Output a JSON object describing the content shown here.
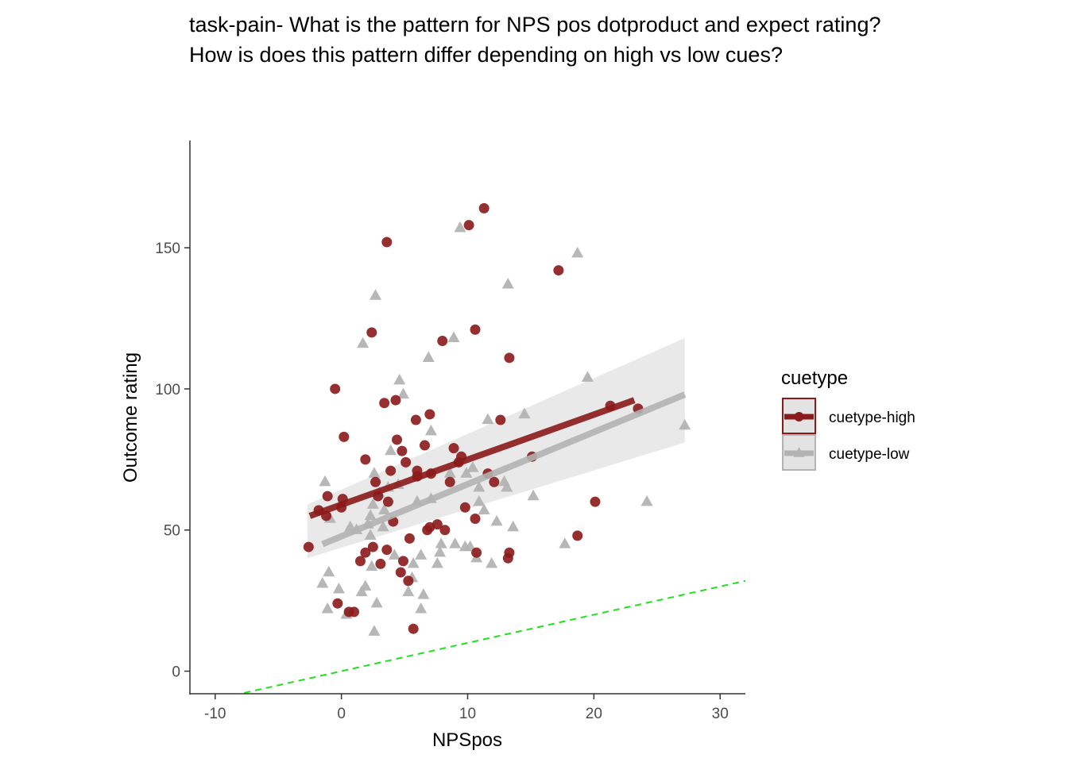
{
  "chart_data": {
    "type": "scatter",
    "title_lines": [
      "task-pain- What is the pattern for NPS pos dotproduct and expect rating?",
      "How is does this pattern differ depending on high vs low cues?"
    ],
    "xlabel": "NPSpos",
    "ylabel": "Outcome rating",
    "xlim": [
      -12,
      32
    ],
    "ylim": [
      -8,
      188
    ],
    "x_ticks": [
      -10,
      0,
      10,
      20,
      30
    ],
    "y_ticks": [
      0,
      50,
      100,
      150
    ],
    "grid": false,
    "legend": {
      "title": "cuetype",
      "position": "right"
    },
    "reference_line": {
      "style": "dashed",
      "color": "#22e01d",
      "slope": 1,
      "intercept": 0
    },
    "series": [
      {
        "name": "cuetype-high",
        "marker": "circle",
        "color": "#8b1a1a",
        "fit": {
          "x0": -2.5,
          "y0": 55,
          "x1": 23.2,
          "y1": 96
        },
        "band": null,
        "points": [
          [
            -2.6,
            44
          ],
          [
            -1.8,
            57
          ],
          [
            -1.2,
            55
          ],
          [
            -1.1,
            62
          ],
          [
            -0.5,
            100
          ],
          [
            -0.3,
            24
          ],
          [
            0.0,
            58
          ],
          [
            0.1,
            61
          ],
          [
            0.2,
            83
          ],
          [
            0.6,
            21
          ],
          [
            1.0,
            21
          ],
          [
            1.5,
            39
          ],
          [
            1.9,
            42
          ],
          [
            1.9,
            75
          ],
          [
            2.4,
            120
          ],
          [
            2.5,
            44
          ],
          [
            2.7,
            67
          ],
          [
            2.9,
            62
          ],
          [
            3.1,
            38
          ],
          [
            3.4,
            95
          ],
          [
            3.6,
            152
          ],
          [
            3.6,
            43
          ],
          [
            3.7,
            60
          ],
          [
            3.9,
            71
          ],
          [
            4.1,
            53
          ],
          [
            4.3,
            96
          ],
          [
            4.4,
            82
          ],
          [
            4.7,
            35
          ],
          [
            4.8,
            78
          ],
          [
            4.9,
            39
          ],
          [
            5.1,
            74
          ],
          [
            5.3,
            32
          ],
          [
            5.4,
            47
          ],
          [
            5.7,
            15
          ],
          [
            5.9,
            89
          ],
          [
            6.0,
            69
          ],
          [
            6.0,
            71
          ],
          [
            6.6,
            80
          ],
          [
            6.8,
            50
          ],
          [
            7.0,
            51
          ],
          [
            7.0,
            91
          ],
          [
            7.1,
            70
          ],
          [
            7.6,
            52
          ],
          [
            8.0,
            117
          ],
          [
            8.2,
            50
          ],
          [
            8.6,
            67
          ],
          [
            8.9,
            79
          ],
          [
            9.3,
            74
          ],
          [
            9.5,
            76
          ],
          [
            9.8,
            58
          ],
          [
            10.1,
            158
          ],
          [
            10.6,
            54
          ],
          [
            10.6,
            121
          ],
          [
            10.7,
            42
          ],
          [
            11.3,
            164
          ],
          [
            11.6,
            70
          ],
          [
            12.1,
            67
          ],
          [
            12.6,
            89
          ],
          [
            13.2,
            40
          ],
          [
            13.3,
            42
          ],
          [
            13.3,
            111
          ],
          [
            15.1,
            76
          ],
          [
            17.2,
            142
          ],
          [
            18.7,
            48
          ],
          [
            20.1,
            60
          ],
          [
            21.3,
            94
          ],
          [
            23.5,
            93
          ]
        ]
      },
      {
        "name": "cuetype-low",
        "marker": "triangle",
        "color": "#b3b3b3",
        "fit": {
          "x0": -1.5,
          "y0": 45,
          "x1": 27.2,
          "y1": 98
        },
        "band": {
          "x0": -2.7,
          "lower0": 40,
          "upper0": 59,
          "x1": 27.2,
          "lower1": 81,
          "upper1": 118
        },
        "points": [
          [
            -1.5,
            31
          ],
          [
            -1.3,
            67
          ],
          [
            -1.1,
            22
          ],
          [
            -1.0,
            35
          ],
          [
            -0.9,
            54
          ],
          [
            -0.2,
            29
          ],
          [
            0.4,
            20
          ],
          [
            0.7,
            51
          ],
          [
            1.2,
            50
          ],
          [
            1.6,
            28
          ],
          [
            1.7,
            116
          ],
          [
            1.9,
            30
          ],
          [
            2.1,
            52
          ],
          [
            2.3,
            48
          ],
          [
            2.3,
            55
          ],
          [
            2.4,
            37
          ],
          [
            2.5,
            59
          ],
          [
            2.6,
            70
          ],
          [
            2.6,
            14
          ],
          [
            2.7,
            133
          ],
          [
            2.8,
            24
          ],
          [
            3.0,
            63
          ],
          [
            3.3,
            51
          ],
          [
            3.4,
            57
          ],
          [
            3.7,
            65
          ],
          [
            3.9,
            78
          ],
          [
            4.2,
            41
          ],
          [
            4.5,
            66
          ],
          [
            4.6,
            103
          ],
          [
            4.9,
            98
          ],
          [
            5.3,
            28
          ],
          [
            5.6,
            33
          ],
          [
            5.7,
            38
          ],
          [
            6.0,
            60
          ],
          [
            6.3,
            41
          ],
          [
            6.3,
            22
          ],
          [
            6.5,
            27
          ],
          [
            6.9,
            111
          ],
          [
            7.1,
            85
          ],
          [
            7.1,
            61
          ],
          [
            7.6,
            38
          ],
          [
            7.8,
            42
          ],
          [
            7.9,
            45
          ],
          [
            8.6,
            70
          ],
          [
            8.9,
            118
          ],
          [
            9.0,
            45
          ],
          [
            9.4,
            157
          ],
          [
            9.8,
            44
          ],
          [
            9.9,
            70
          ],
          [
            10.2,
            44
          ],
          [
            10.4,
            72
          ],
          [
            10.7,
            40
          ],
          [
            10.9,
            65
          ],
          [
            10.9,
            60
          ],
          [
            11.3,
            57
          ],
          [
            11.6,
            89
          ],
          [
            11.9,
            38
          ],
          [
            12.3,
            53
          ],
          [
            12.9,
            67
          ],
          [
            13.1,
            65
          ],
          [
            13.2,
            137
          ],
          [
            13.6,
            51
          ],
          [
            14.5,
            91
          ],
          [
            15.2,
            62
          ],
          [
            17.7,
            45
          ],
          [
            18.7,
            148
          ],
          [
            19.5,
            104
          ],
          [
            24.2,
            60
          ],
          [
            27.2,
            87
          ]
        ]
      }
    ]
  }
}
